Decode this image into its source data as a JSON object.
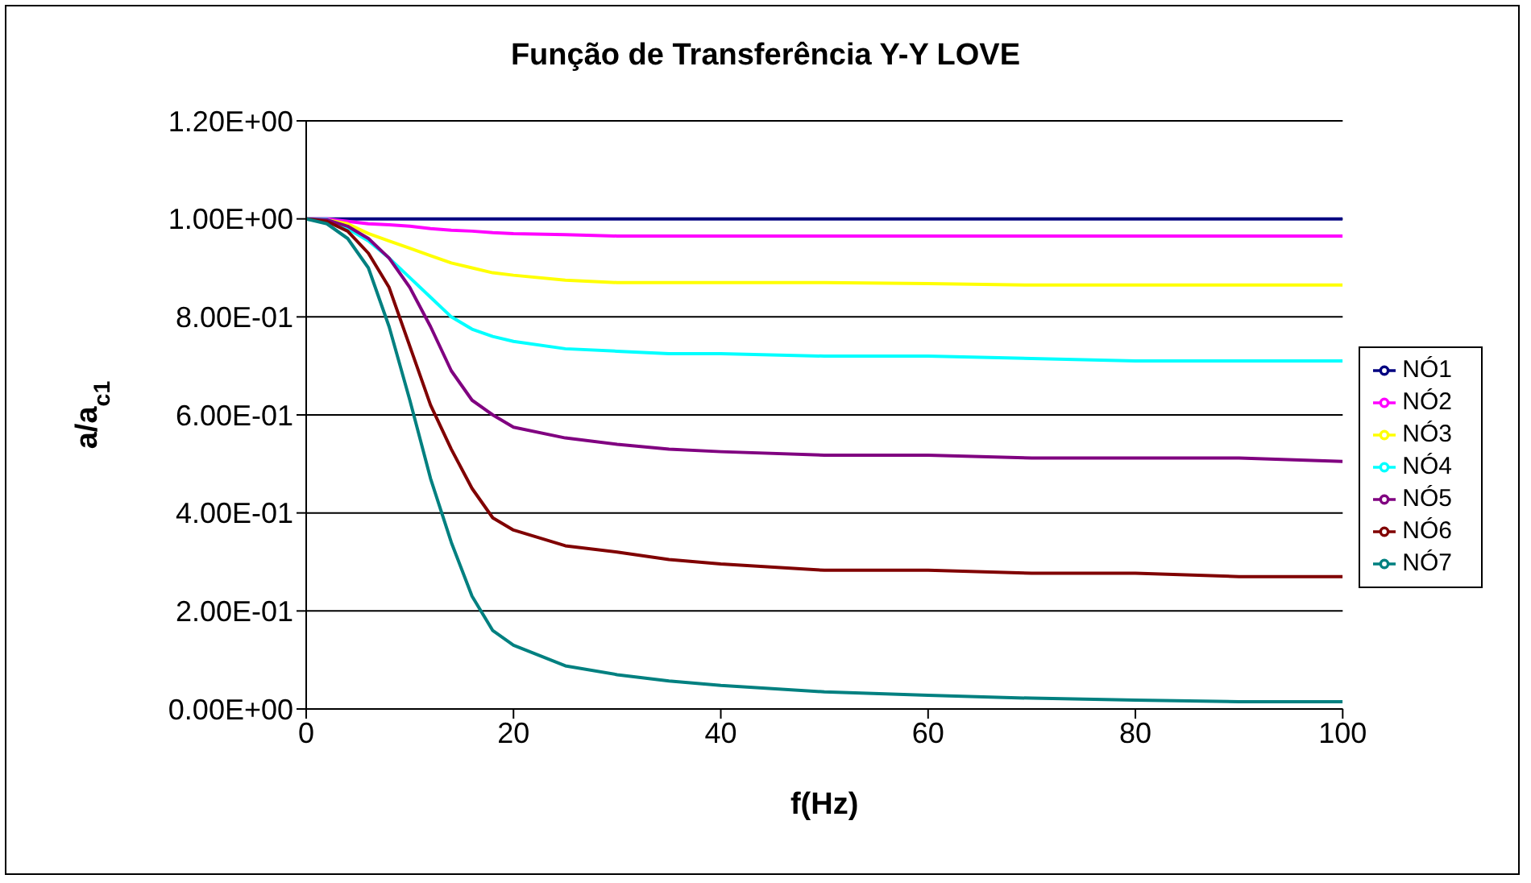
{
  "chart_data": {
    "type": "line",
    "title": "Função de Transferência Y-Y LOVE",
    "xlabel": "f(Hz)",
    "ylabel": "a/a$_{c1}$",
    "x": [
      0,
      2,
      4,
      6,
      8,
      10,
      12,
      14,
      16,
      18,
      20,
      25,
      30,
      35,
      40,
      50,
      60,
      70,
      80,
      90,
      100
    ],
    "series": [
      {
        "name": "NÓ1",
        "color": "#000080",
        "values": [
          1,
          1,
          1,
          1,
          1,
          1,
          1,
          1,
          1,
          1,
          1,
          1,
          1,
          1,
          1,
          1,
          1,
          1,
          1,
          1,
          1
        ]
      },
      {
        "name": "NÓ2",
        "color": "#ff00ff",
        "values": [
          1,
          1,
          0.995,
          0.99,
          0.988,
          0.985,
          0.98,
          0.977,
          0.975,
          0.972,
          0.97,
          0.968,
          0.965,
          0.965,
          0.965,
          0.965,
          0.965,
          0.965,
          0.965,
          0.965,
          0.965
        ]
      },
      {
        "name": "NÓ3",
        "color": "#ffff00",
        "values": [
          1,
          0.998,
          0.99,
          0.97,
          0.955,
          0.94,
          0.925,
          0.91,
          0.9,
          0.89,
          0.885,
          0.875,
          0.87,
          0.87,
          0.87,
          0.87,
          0.868,
          0.865,
          0.865,
          0.865,
          0.865
        ]
      },
      {
        "name": "NÓ4",
        "color": "#00ffff",
        "values": [
          1,
          0.999,
          0.98,
          0.955,
          0.92,
          0.88,
          0.84,
          0.8,
          0.775,
          0.76,
          0.75,
          0.735,
          0.73,
          0.725,
          0.725,
          0.72,
          0.72,
          0.715,
          0.71,
          0.71,
          0.71
        ]
      },
      {
        "name": "NÓ5",
        "color": "#800080",
        "values": [
          1,
          0.998,
          0.985,
          0.96,
          0.92,
          0.86,
          0.78,
          0.69,
          0.63,
          0.6,
          0.575,
          0.553,
          0.54,
          0.53,
          0.525,
          0.518,
          0.518,
          0.512,
          0.512,
          0.512,
          0.505
        ]
      },
      {
        "name": "NÓ6",
        "color": "#800000",
        "values": [
          1,
          0.995,
          0.975,
          0.93,
          0.86,
          0.74,
          0.62,
          0.53,
          0.45,
          0.39,
          0.365,
          0.333,
          0.32,
          0.305,
          0.296,
          0.283,
          0.283,
          0.277,
          0.277,
          0.27,
          0.27
        ]
      },
      {
        "name": "NÓ7",
        "color": "#008080",
        "values": [
          1,
          0.99,
          0.96,
          0.9,
          0.78,
          0.63,
          0.47,
          0.34,
          0.23,
          0.16,
          0.13,
          0.088,
          0.07,
          0.057,
          0.048,
          0.035,
          0.028,
          0.022,
          0.018,
          0.015,
          0.015
        ]
      }
    ],
    "xlim": [
      0,
      100
    ],
    "xticks": [
      0,
      20,
      40,
      60,
      80,
      100
    ],
    "ylim": [
      0,
      1.2
    ],
    "yticks": [
      {
        "value": 0,
        "label": "0.00E+00"
      },
      {
        "value": 0.2,
        "label": "2.00E-01"
      },
      {
        "value": 0.4,
        "label": "4.00E-01"
      },
      {
        "value": 0.6,
        "label": "6.00E-01"
      },
      {
        "value": 0.8,
        "label": "8.00E-01"
      },
      {
        "value": 1,
        "label": "1.00E+00"
      },
      {
        "value": 1.2,
        "label": "1.20E+00"
      }
    ],
    "grid": "y",
    "legend": "right",
    "marker": "none",
    "line_style": "solid"
  }
}
